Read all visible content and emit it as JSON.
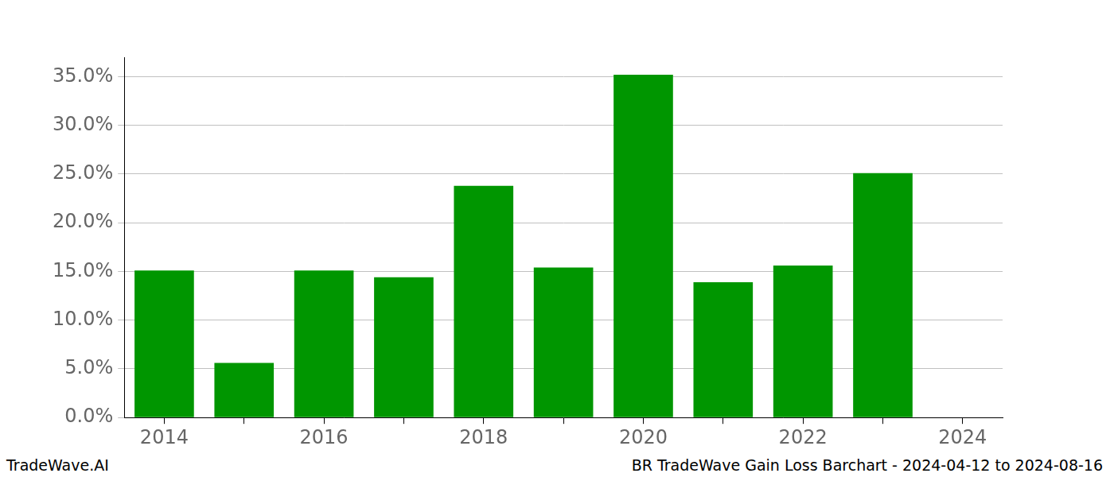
{
  "chart_data": {
    "type": "bar",
    "categories": [
      "2014",
      null,
      "2016",
      null,
      "2018",
      null,
      "2020",
      null,
      "2022",
      null,
      "2024"
    ],
    "values": [
      15.1,
      5.6,
      15.1,
      14.4,
      23.8,
      15.4,
      35.2,
      13.9,
      15.6,
      25.1,
      null
    ],
    "color": "#009600",
    "ylim": [
      0,
      37
    ],
    "yticks": [
      {
        "value": 0,
        "label": "0.0%"
      },
      {
        "value": 5,
        "label": "5.0%"
      },
      {
        "value": 10,
        "label": "10.0%"
      },
      {
        "value": 15,
        "label": "15.0%"
      },
      {
        "value": 20,
        "label": "20.0%"
      },
      {
        "value": 25,
        "label": "25.0%"
      },
      {
        "value": 30,
        "label": "30.0%"
      },
      {
        "value": 35,
        "label": "35.0%"
      }
    ],
    "grid": true,
    "annotations": [
      "TradeWave.AI",
      "BR TradeWave Gain Loss Barchart - 2024-04-12 to 2024-08-16"
    ]
  }
}
